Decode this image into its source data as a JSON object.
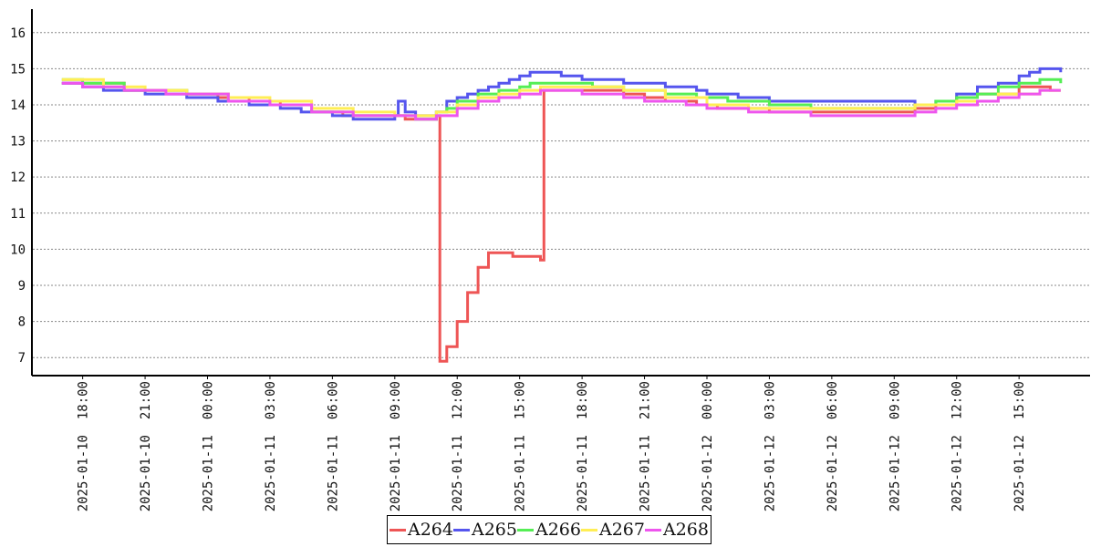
{
  "chart_data": {
    "type": "line",
    "title": "",
    "xlabel": "",
    "ylabel": "",
    "ylim": [
      6.5,
      16.6
    ],
    "xlim": [
      "2025-01-10 16:00",
      "2025-01-12 17:40"
    ],
    "yticks": [
      7,
      8,
      9,
      10,
      11,
      12,
      13,
      14,
      15,
      16
    ],
    "xticks": [
      "2025-01-10 18:00",
      "2025-01-10 21:00",
      "2025-01-11 00:00",
      "2025-01-11 03:00",
      "2025-01-11 06:00",
      "2025-01-11 09:00",
      "2025-01-11 12:00",
      "2025-01-11 15:00",
      "2025-01-11 18:00",
      "2025-01-11 21:00",
      "2025-01-12 00:00",
      "2025-01-12 03:00",
      "2025-01-12 06:00",
      "2025-01-12 09:00",
      "2025-01-12 12:00",
      "2025-01-12 15:00"
    ],
    "grid": "horizontal dotted",
    "legend_position": "bottom-center",
    "series": [
      {
        "name": "A264",
        "color": "#ee5555",
        "points": [
          [
            "2025-01-10 17:00",
            14.6
          ],
          [
            "2025-01-10 20:00",
            14.4
          ],
          [
            "2025-01-10 23:00",
            14.3
          ],
          [
            "2025-01-11 00:30",
            14.2
          ],
          [
            "2025-01-11 02:00",
            14.1
          ],
          [
            "2025-01-11 03:30",
            14.0
          ],
          [
            "2025-01-11 05:00",
            13.8
          ],
          [
            "2025-01-11 06:30",
            13.7
          ],
          [
            "2025-01-11 09:00",
            13.7
          ],
          [
            "2025-01-11 09:30",
            13.6
          ],
          [
            "2025-01-11 11:00",
            13.7
          ],
          [
            "2025-01-11 11:10",
            6.9
          ],
          [
            "2025-01-11 11:30",
            7.3
          ],
          [
            "2025-01-11 12:00",
            8.0
          ],
          [
            "2025-01-11 12:30",
            8.8
          ],
          [
            "2025-01-11 13:00",
            9.5
          ],
          [
            "2025-01-11 13:30",
            9.9
          ],
          [
            "2025-01-11 14:30",
            9.9
          ],
          [
            "2025-01-11 14:40",
            9.8
          ],
          [
            "2025-01-11 16:00",
            9.7
          ],
          [
            "2025-01-11 16:10",
            14.4
          ],
          [
            "2025-01-11 19:00",
            14.4
          ],
          [
            "2025-01-11 20:00",
            14.3
          ],
          [
            "2025-01-11 21:00",
            14.2
          ],
          [
            "2025-01-11 22:00",
            14.1
          ],
          [
            "2025-01-11 23:30",
            14.0
          ],
          [
            "2025-01-12 00:30",
            13.9
          ],
          [
            "2025-01-12 03:00",
            13.8
          ],
          [
            "2025-01-12 06:00",
            13.8
          ],
          [
            "2025-01-12 08:00",
            13.8
          ],
          [
            "2025-01-12 10:00",
            13.9
          ],
          [
            "2025-01-12 11:00",
            14.0
          ],
          [
            "2025-01-12 12:00",
            14.2
          ],
          [
            "2025-01-12 13:00",
            14.3
          ],
          [
            "2025-01-12 15:00",
            14.5
          ],
          [
            "2025-01-12 16:00",
            14.5
          ],
          [
            "2025-01-12 16:30",
            14.4
          ],
          [
            "2025-01-12 17:00",
            14.4
          ]
        ]
      },
      {
        "name": "A265",
        "color": "#5555ee",
        "points": [
          [
            "2025-01-10 17:00",
            14.6
          ],
          [
            "2025-01-10 18:00",
            14.5
          ],
          [
            "2025-01-10 19:00",
            14.4
          ],
          [
            "2025-01-10 21:00",
            14.3
          ],
          [
            "2025-01-10 23:00",
            14.2
          ],
          [
            "2025-01-11 00:30",
            14.1
          ],
          [
            "2025-01-11 02:00",
            14.0
          ],
          [
            "2025-01-11 03:30",
            13.9
          ],
          [
            "2025-01-11 04:30",
            13.8
          ],
          [
            "2025-01-11 06:00",
            13.7
          ],
          [
            "2025-01-11 07:00",
            13.6
          ],
          [
            "2025-01-11 09:00",
            13.7
          ],
          [
            "2025-01-11 09:10",
            14.1
          ],
          [
            "2025-01-11 09:30",
            13.8
          ],
          [
            "2025-01-11 10:00",
            13.7
          ],
          [
            "2025-01-11 11:00",
            13.8
          ],
          [
            "2025-01-11 11:30",
            14.1
          ],
          [
            "2025-01-11 12:00",
            14.2
          ],
          [
            "2025-01-11 12:30",
            14.3
          ],
          [
            "2025-01-11 13:00",
            14.4
          ],
          [
            "2025-01-11 13:30",
            14.5
          ],
          [
            "2025-01-11 14:00",
            14.6
          ],
          [
            "2025-01-11 14:30",
            14.7
          ],
          [
            "2025-01-11 15:00",
            14.8
          ],
          [
            "2025-01-11 15:30",
            14.9
          ],
          [
            "2025-01-11 17:00",
            14.8
          ],
          [
            "2025-01-11 18:00",
            14.7
          ],
          [
            "2025-01-11 19:00",
            14.7
          ],
          [
            "2025-01-11 20:00",
            14.6
          ],
          [
            "2025-01-11 22:00",
            14.5
          ],
          [
            "2025-01-11 23:30",
            14.4
          ],
          [
            "2025-01-12 00:00",
            14.3
          ],
          [
            "2025-01-12 01:30",
            14.2
          ],
          [
            "2025-01-12 03:00",
            14.1
          ],
          [
            "2025-01-12 06:00",
            14.1
          ],
          [
            "2025-01-12 09:00",
            14.1
          ],
          [
            "2025-01-12 10:00",
            14.0
          ],
          [
            "2025-01-12 11:00",
            14.1
          ],
          [
            "2025-01-12 12:00",
            14.3
          ],
          [
            "2025-01-12 13:00",
            14.5
          ],
          [
            "2025-01-12 14:00",
            14.6
          ],
          [
            "2025-01-12 15:00",
            14.8
          ],
          [
            "2025-01-12 15:30",
            14.9
          ],
          [
            "2025-01-12 16:00",
            15.0
          ],
          [
            "2025-01-12 17:00",
            14.9
          ]
        ]
      },
      {
        "name": "A266",
        "color": "#55ee55",
        "points": [
          [
            "2025-01-10 17:00",
            14.7
          ],
          [
            "2025-01-10 18:00",
            14.6
          ],
          [
            "2025-01-10 20:00",
            14.4
          ],
          [
            "2025-01-10 23:00",
            14.3
          ],
          [
            "2025-01-11 01:00",
            14.1
          ],
          [
            "2025-01-11 03:00",
            14.0
          ],
          [
            "2025-01-11 05:00",
            13.8
          ],
          [
            "2025-01-11 07:00",
            13.7
          ],
          [
            "2025-01-11 09:00",
            13.7
          ],
          [
            "2025-01-11 10:00",
            13.6
          ],
          [
            "2025-01-11 11:00",
            13.8
          ],
          [
            "2025-01-11 11:30",
            13.9
          ],
          [
            "2025-01-11 12:00",
            14.1
          ],
          [
            "2025-01-11 13:00",
            14.3
          ],
          [
            "2025-01-11 14:00",
            14.4
          ],
          [
            "2025-01-11 15:00",
            14.5
          ],
          [
            "2025-01-11 15:30",
            14.6
          ],
          [
            "2025-01-11 18:00",
            14.6
          ],
          [
            "2025-01-11 18:30",
            14.5
          ],
          [
            "2025-01-11 20:00",
            14.4
          ],
          [
            "2025-01-11 22:00",
            14.3
          ],
          [
            "2025-01-11 23:30",
            14.2
          ],
          [
            "2025-01-12 01:00",
            14.1
          ],
          [
            "2025-01-12 03:00",
            14.0
          ],
          [
            "2025-01-12 05:00",
            13.9
          ],
          [
            "2025-01-12 09:00",
            13.9
          ],
          [
            "2025-01-12 10:00",
            14.0
          ],
          [
            "2025-01-12 11:00",
            14.1
          ],
          [
            "2025-01-12 12:00",
            14.2
          ],
          [
            "2025-01-12 13:00",
            14.3
          ],
          [
            "2025-01-12 14:00",
            14.5
          ],
          [
            "2025-01-12 15:00",
            14.6
          ],
          [
            "2025-01-12 16:00",
            14.7
          ],
          [
            "2025-01-12 17:00",
            14.6
          ]
        ]
      },
      {
        "name": "A267",
        "color": "#ffee55",
        "points": [
          [
            "2025-01-10 17:00",
            14.7
          ],
          [
            "2025-01-10 19:00",
            14.5
          ],
          [
            "2025-01-10 21:00",
            14.4
          ],
          [
            "2025-01-10 23:00",
            14.3
          ],
          [
            "2025-01-11 01:00",
            14.2
          ],
          [
            "2025-01-11 03:00",
            14.1
          ],
          [
            "2025-01-11 05:00",
            13.9
          ],
          [
            "2025-01-11 07:00",
            13.8
          ],
          [
            "2025-01-11 09:00",
            13.7
          ],
          [
            "2025-01-11 10:00",
            13.7
          ],
          [
            "2025-01-11 11:00",
            13.8
          ],
          [
            "2025-01-11 12:00",
            14.0
          ],
          [
            "2025-01-11 13:00",
            14.2
          ],
          [
            "2025-01-11 14:00",
            14.3
          ],
          [
            "2025-01-11 15:00",
            14.4
          ],
          [
            "2025-01-11 16:00",
            14.5
          ],
          [
            "2025-01-11 18:00",
            14.5
          ],
          [
            "2025-01-11 20:00",
            14.4
          ],
          [
            "2025-01-11 22:00",
            14.2
          ],
          [
            "2025-01-12 00:00",
            14.0
          ],
          [
            "2025-01-12 02:00",
            13.9
          ],
          [
            "2025-01-12 08:00",
            13.9
          ],
          [
            "2025-01-12 10:00",
            14.0
          ],
          [
            "2025-01-12 12:00",
            14.1
          ],
          [
            "2025-01-12 14:00",
            14.3
          ],
          [
            "2025-01-12 16:00",
            14.4
          ],
          [
            "2025-01-12 17:00",
            14.4
          ]
        ]
      },
      {
        "name": "A268",
        "color": "#ee55ee",
        "points": [
          [
            "2025-01-10 17:00",
            14.6
          ],
          [
            "2025-01-10 18:00",
            14.5
          ],
          [
            "2025-01-10 20:00",
            14.4
          ],
          [
            "2025-01-10 22:00",
            14.3
          ],
          [
            "2025-01-11 01:00",
            14.1
          ],
          [
            "2025-01-11 03:00",
            14.0
          ],
          [
            "2025-01-11 05:00",
            13.8
          ],
          [
            "2025-01-11 07:00",
            13.7
          ],
          [
            "2025-01-11 09:00",
            13.7
          ],
          [
            "2025-01-11 10:00",
            13.6
          ],
          [
            "2025-01-11 11:00",
            13.7
          ],
          [
            "2025-01-11 12:00",
            13.9
          ],
          [
            "2025-01-11 13:00",
            14.1
          ],
          [
            "2025-01-11 14:00",
            14.2
          ],
          [
            "2025-01-11 15:00",
            14.3
          ],
          [
            "2025-01-11 16:00",
            14.4
          ],
          [
            "2025-01-11 18:00",
            14.3
          ],
          [
            "2025-01-11 20:00",
            14.2
          ],
          [
            "2025-01-11 21:00",
            14.1
          ],
          [
            "2025-01-11 23:00",
            14.0
          ],
          [
            "2025-01-12 00:00",
            13.9
          ],
          [
            "2025-01-12 02:00",
            13.8
          ],
          [
            "2025-01-12 05:00",
            13.7
          ],
          [
            "2025-01-12 09:00",
            13.7
          ],
          [
            "2025-01-12 10:00",
            13.8
          ],
          [
            "2025-01-12 11:00",
            13.9
          ],
          [
            "2025-01-12 12:00",
            14.0
          ],
          [
            "2025-01-12 13:00",
            14.1
          ],
          [
            "2025-01-12 14:00",
            14.2
          ],
          [
            "2025-01-12 15:00",
            14.3
          ],
          [
            "2025-01-12 16:00",
            14.4
          ],
          [
            "2025-01-12 17:00",
            14.4
          ]
        ]
      }
    ]
  }
}
